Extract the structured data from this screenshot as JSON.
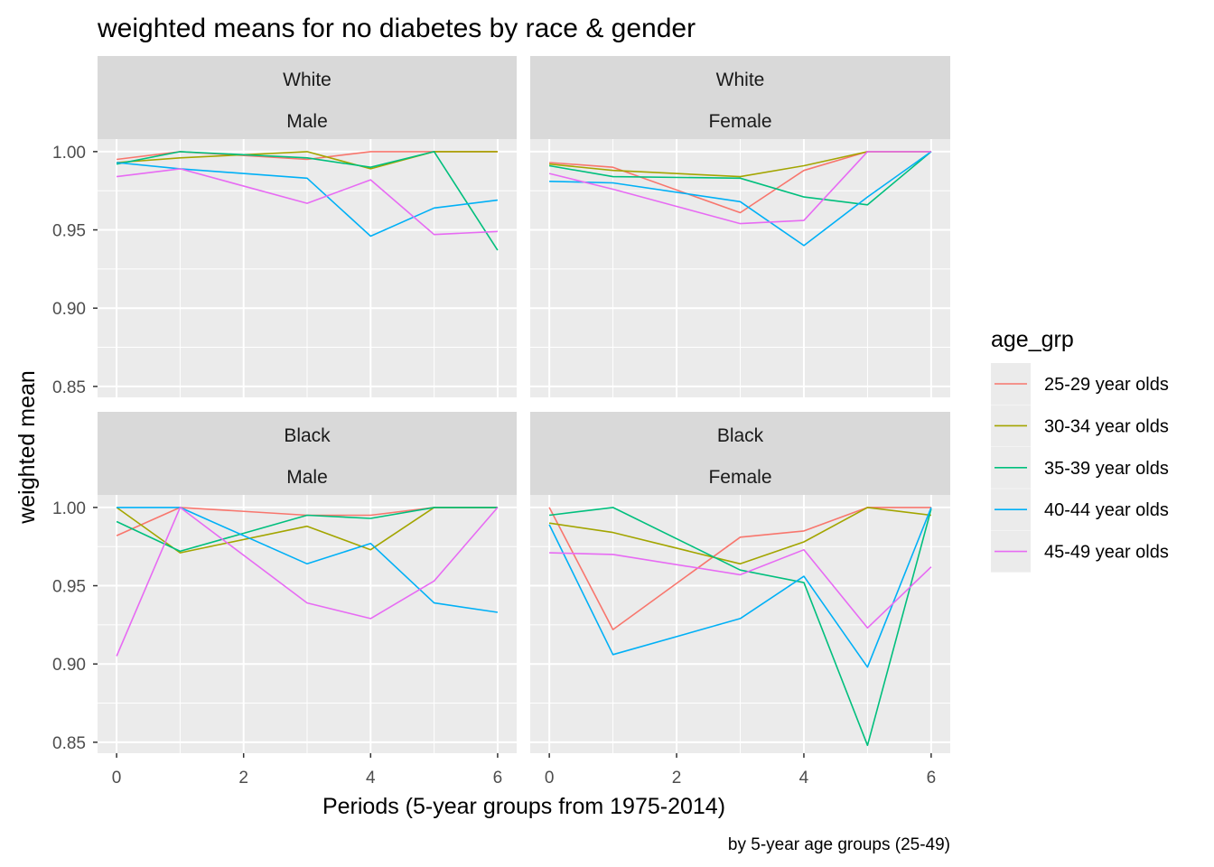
{
  "chart_data": {
    "type": "line",
    "title": "weighted means for no diabetes by race & gender",
    "xlabel": "Periods (5-year groups from 1975-2014)",
    "ylabel": "weighted mean",
    "caption": "by 5-year age groups (25-49)",
    "x_ticks": [
      "0",
      "2",
      "4",
      "6"
    ],
    "y_ticks": [
      "0.85",
      "0.90",
      "0.95",
      "1.00"
    ],
    "xlim": [
      -0.3,
      6.3
    ],
    "ylim": [
      0.843,
      1.008
    ],
    "grid": true,
    "legend": {
      "title": "age_grp",
      "position": "right",
      "entries": [
        "25-29 year olds",
        "30-34 year olds",
        "35-39 year olds",
        "40-44 year olds",
        "45-49 year olds"
      ]
    },
    "colors": [
      "#F8766D",
      "#A3A500",
      "#00BF7D",
      "#00B0F6",
      "#E76BF3"
    ],
    "panels": [
      {
        "race": "White",
        "gender": "Male",
        "series": [
          {
            "name": "25-29 year olds",
            "x": [
              0,
              1,
              3,
              4,
              5,
              6
            ],
            "y": [
              0.995,
              1.0,
              0.995,
              1.0,
              1.0,
              1.0
            ]
          },
          {
            "name": "30-34 year olds",
            "x": [
              0,
              1,
              3,
              4,
              5,
              6
            ],
            "y": [
              0.993,
              0.996,
              1.0,
              0.989,
              1.0,
              1.0
            ]
          },
          {
            "name": "35-39 year olds",
            "x": [
              0,
              1,
              3,
              4,
              5,
              6
            ],
            "y": [
              0.992,
              1.0,
              0.996,
              0.99,
              1.0,
              0.937
            ]
          },
          {
            "name": "40-44 year olds",
            "x": [
              0,
              1,
              3,
              4,
              5,
              6
            ],
            "y": [
              0.993,
              0.989,
              0.983,
              0.946,
              0.964,
              0.969
            ]
          },
          {
            "name": "45-49 year olds",
            "x": [
              0,
              1,
              3,
              4,
              5,
              6
            ],
            "y": [
              0.984,
              0.989,
              0.967,
              0.982,
              0.947,
              0.949
            ]
          }
        ]
      },
      {
        "race": "White",
        "gender": "Female",
        "series": [
          {
            "name": "25-29 year olds",
            "x": [
              0,
              1,
              3,
              4,
              5,
              6
            ],
            "y": [
              0.993,
              0.99,
              0.961,
              0.988,
              1.0,
              1.0
            ]
          },
          {
            "name": "30-34 year olds",
            "x": [
              0,
              1,
              3,
              4,
              5,
              6
            ],
            "y": [
              0.992,
              0.988,
              0.984,
              0.991,
              1.0,
              1.0
            ]
          },
          {
            "name": "35-39 year olds",
            "x": [
              0,
              1,
              3,
              4,
              5,
              6
            ],
            "y": [
              0.991,
              0.984,
              0.983,
              0.971,
              0.966,
              1.0
            ]
          },
          {
            "name": "40-44 year olds",
            "x": [
              0,
              1,
              3,
              4,
              5,
              6
            ],
            "y": [
              0.981,
              0.98,
              0.968,
              0.94,
              0.971,
              1.0
            ]
          },
          {
            "name": "45-49 year olds",
            "x": [
              0,
              1,
              3,
              4,
              5,
              6
            ],
            "y": [
              0.986,
              0.976,
              0.954,
              0.956,
              1.0,
              1.0
            ]
          }
        ]
      },
      {
        "race": "Black",
        "gender": "Male",
        "series": [
          {
            "name": "25-29 year olds",
            "x": [
              0,
              1,
              3,
              4,
              5,
              6
            ],
            "y": [
              0.982,
              1.0,
              0.995,
              0.995,
              1.0,
              1.0
            ]
          },
          {
            "name": "30-34 year olds",
            "x": [
              0,
              1,
              3,
              4,
              5,
              6
            ],
            "y": [
              1.0,
              0.971,
              0.988,
              0.973,
              1.0,
              1.0
            ]
          },
          {
            "name": "35-39 year olds",
            "x": [
              0,
              1,
              3,
              4,
              5,
              6
            ],
            "y": [
              0.991,
              0.972,
              0.995,
              0.993,
              1.0,
              1.0
            ]
          },
          {
            "name": "40-44 year olds",
            "x": [
              0,
              1,
              3,
              4,
              5,
              6
            ],
            "y": [
              1.0,
              1.0,
              0.964,
              0.977,
              0.939,
              0.933
            ]
          },
          {
            "name": "45-49 year olds",
            "x": [
              0,
              1,
              3,
              4,
              5,
              6
            ],
            "y": [
              0.905,
              1.0,
              0.939,
              0.929,
              0.953,
              1.0
            ]
          }
        ]
      },
      {
        "race": "Black",
        "gender": "Female",
        "series": [
          {
            "name": "25-29 year olds",
            "x": [
              0,
              1,
              3,
              4,
              5,
              6
            ],
            "y": [
              1.0,
              0.922,
              0.981,
              0.985,
              1.0,
              1.0
            ]
          },
          {
            "name": "30-34 year olds",
            "x": [
              0,
              1,
              3,
              4,
              5,
              6
            ],
            "y": [
              0.99,
              0.984,
              0.964,
              0.978,
              1.0,
              0.995
            ]
          },
          {
            "name": "35-39 year olds",
            "x": [
              0,
              1,
              3,
              4,
              5,
              6
            ],
            "y": [
              0.995,
              1.0,
              0.96,
              0.952,
              0.848,
              0.999
            ]
          },
          {
            "name": "40-44 year olds",
            "x": [
              0,
              1,
              3,
              4,
              5,
              6
            ],
            "y": [
              0.989,
              0.906,
              0.929,
              0.956,
              0.898,
              1.0
            ]
          },
          {
            "name": "45-49 year olds",
            "x": [
              0,
              1,
              3,
              4,
              5,
              6
            ],
            "y": [
              0.971,
              0.97,
              0.957,
              0.973,
              0.923,
              0.962
            ]
          }
        ]
      }
    ]
  }
}
